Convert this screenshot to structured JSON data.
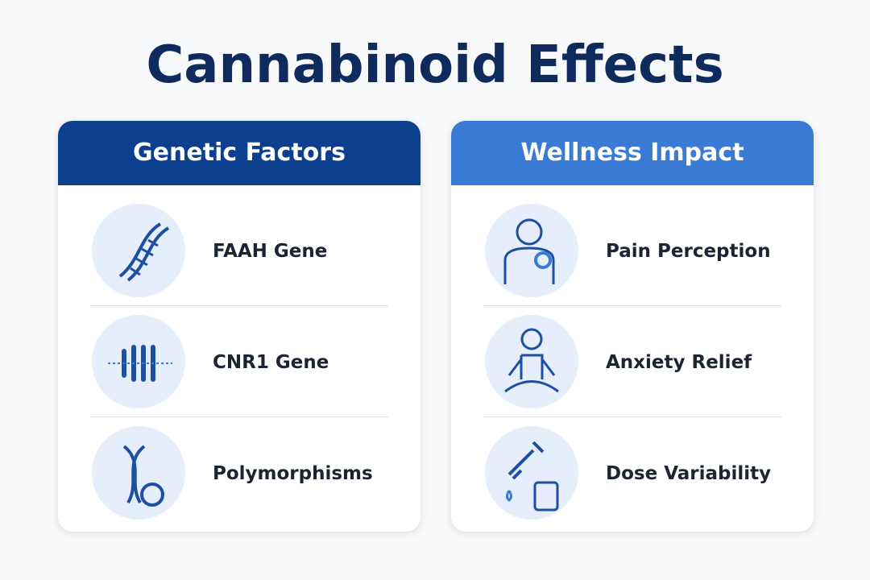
{
  "header": {
    "title": "Cannabinoid Effects"
  },
  "panels": [
    {
      "title": "Genetic Factors",
      "items": [
        {
          "label": "FAAH Gene"
        },
        {
          "label": "CNR1 Gene"
        },
        {
          "label": "Polymorphisms"
        }
      ]
    },
    {
      "title": "Wellness Impact",
      "items": [
        {
          "label": "Pain Perception"
        },
        {
          "label": "Anxiety Relief"
        },
        {
          "label": "Dose Variability"
        }
      ]
    }
  ]
}
